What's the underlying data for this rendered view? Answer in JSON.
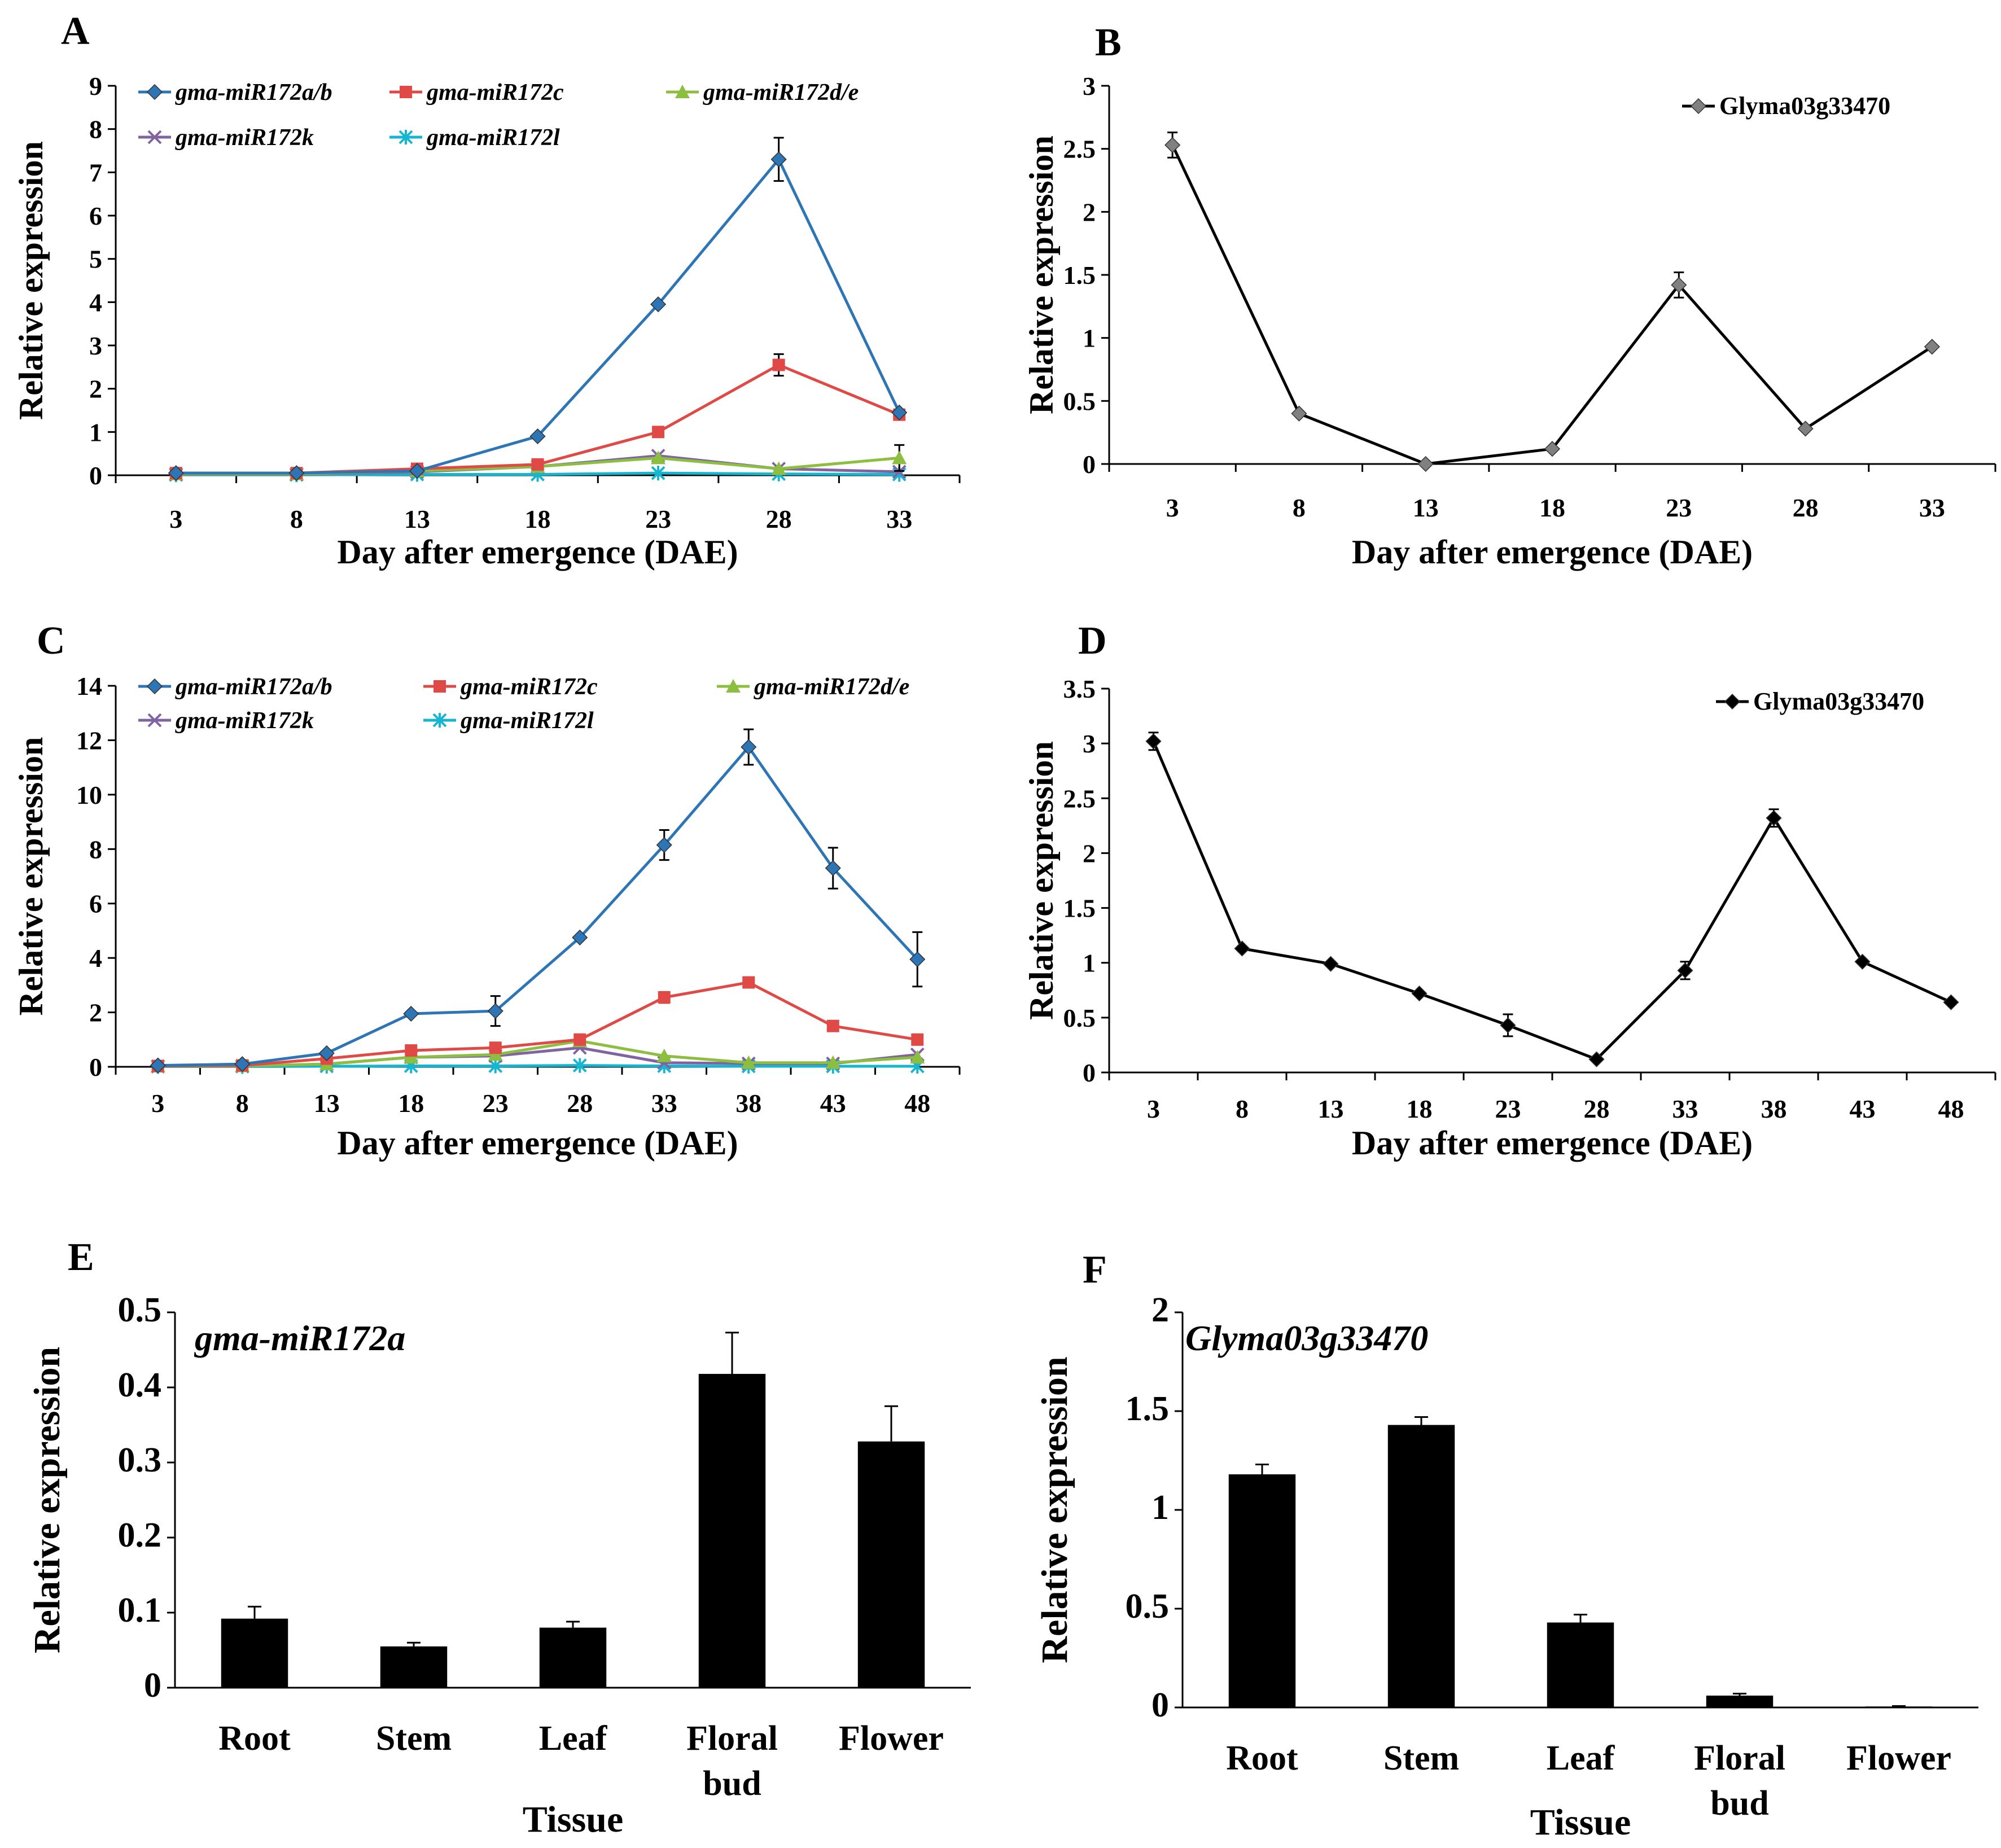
{
  "chart_data": [
    {
      "panel": "A",
      "type": "line",
      "xlabel": "Day after emergence (DAE)",
      "ylabel": "Relative expression",
      "categories": [
        "3",
        "8",
        "13",
        "18",
        "23",
        "28",
        "33"
      ],
      "ylim": [
        0,
        9
      ],
      "yticks": [
        "0",
        "1",
        "2",
        "3",
        "4",
        "5",
        "6",
        "7",
        "8",
        "9"
      ],
      "legend": "top",
      "series": [
        {
          "name": "gma-miR172a/b",
          "color": "#2e75b6",
          "marker": "diamond",
          "values": [
            0.05,
            0.05,
            0.1,
            0.9,
            3.95,
            7.3,
            1.45
          ],
          "errors": [
            0,
            0,
            0,
            0,
            0,
            0.5,
            0
          ]
        },
        {
          "name": "gma-miR172c",
          "color": "#e04a46",
          "marker": "square",
          "values": [
            0.05,
            0.05,
            0.15,
            0.25,
            1.0,
            2.55,
            1.4
          ],
          "errors": [
            0,
            0,
            0,
            0,
            0,
            0.25,
            0
          ]
        },
        {
          "name": "gma-miR172d/e",
          "color": "#8cbf3f",
          "marker": "triangle",
          "values": [
            0.03,
            0.03,
            0.1,
            0.2,
            0.4,
            0.15,
            0.4
          ],
          "errors": [
            0,
            0,
            0,
            0,
            0,
            0,
            0.3
          ]
        },
        {
          "name": "gma-miR172k",
          "color": "#8064a2",
          "marker": "x",
          "values": [
            0.02,
            0.02,
            0.08,
            0.2,
            0.45,
            0.15,
            0.08
          ],
          "errors": [
            0,
            0,
            0,
            0,
            0,
            0,
            0
          ]
        },
        {
          "name": "gma-miR172l",
          "color": "#17b6d0",
          "marker": "star",
          "values": [
            0.01,
            0.01,
            0.02,
            0.02,
            0.05,
            0.03,
            0.02
          ],
          "errors": [
            0,
            0,
            0,
            0,
            0,
            0,
            0
          ]
        }
      ]
    },
    {
      "panel": "B",
      "type": "line",
      "xlabel": "Day after emergence (DAE)",
      "ylabel": "Relative expression",
      "categories": [
        "3",
        "8",
        "13",
        "18",
        "23",
        "28",
        "33"
      ],
      "ylim": [
        0,
        3
      ],
      "yticks": [
        "0",
        "0.5",
        "1",
        "1.5",
        "2",
        "2.5",
        "3"
      ],
      "legend": "top-right",
      "series": [
        {
          "name": "Glyma03g33470",
          "color": "#000000",
          "markerColor": "#808080",
          "marker": "diamond",
          "values": [
            2.53,
            0.4,
            0.0,
            0.12,
            1.42,
            0.28,
            0.93
          ],
          "errors": [
            0.1,
            0,
            0,
            0,
            0.1,
            0,
            0
          ]
        }
      ]
    },
    {
      "panel": "C",
      "type": "line",
      "xlabel": "Day after emergence (DAE)",
      "ylabel": "Relative expression",
      "categories": [
        "3",
        "8",
        "13",
        "18",
        "23",
        "28",
        "33",
        "38",
        "43",
        "48"
      ],
      "ylim": [
        0,
        14
      ],
      "yticks": [
        "0",
        "2",
        "4",
        "6",
        "8",
        "10",
        "12",
        "14"
      ],
      "legend": "top",
      "series": [
        {
          "name": "gma-miR172a/b",
          "color": "#2e75b6",
          "marker": "diamond",
          "values": [
            0.05,
            0.1,
            0.5,
            1.95,
            2.05,
            4.75,
            8.15,
            11.75,
            7.3,
            3.95
          ],
          "errors": [
            0,
            0,
            0,
            0,
            0.55,
            0,
            0.55,
            0.65,
            0.75,
            1.0
          ]
        },
        {
          "name": "gma-miR172c",
          "color": "#e04a46",
          "marker": "square",
          "values": [
            0.03,
            0.05,
            0.3,
            0.6,
            0.7,
            1.0,
            2.55,
            3.1,
            1.5,
            1.0
          ],
          "errors": [
            0,
            0,
            0,
            0,
            0,
            0,
            0.2,
            0,
            0,
            0
          ]
        },
        {
          "name": "gma-miR172d/e",
          "color": "#8cbf3f",
          "marker": "triangle",
          "values": [
            0.02,
            0.03,
            0.1,
            0.35,
            0.45,
            0.95,
            0.4,
            0.15,
            0.15,
            0.35
          ],
          "errors": [
            0,
            0,
            0,
            0,
            0,
            0,
            0,
            0,
            0,
            0
          ]
        },
        {
          "name": "gma-miR172k",
          "color": "#8064a2",
          "marker": "x",
          "values": [
            0.02,
            0.03,
            0.1,
            0.35,
            0.4,
            0.7,
            0.15,
            0.12,
            0.12,
            0.45
          ],
          "errors": [
            0,
            0,
            0,
            0,
            0,
            0,
            0,
            0,
            0,
            0
          ]
        },
        {
          "name": "gma-miR172l",
          "color": "#17b6d0",
          "marker": "star",
          "values": [
            0.01,
            0.01,
            0.02,
            0.03,
            0.03,
            0.05,
            0.03,
            0.02,
            0.02,
            0.02
          ],
          "errors": [
            0,
            0,
            0,
            0,
            0,
            0,
            0,
            0,
            0,
            0
          ]
        }
      ]
    },
    {
      "panel": "D",
      "type": "line",
      "xlabel": "Day after emergence (DAE)",
      "ylabel": "Relative expression",
      "categories": [
        "3",
        "8",
        "13",
        "18",
        "23",
        "28",
        "33",
        "38",
        "43",
        "48"
      ],
      "ylim": [
        0,
        3.5
      ],
      "yticks": [
        "0",
        "0.5",
        "1",
        "1.5",
        "2",
        "2.5",
        "3",
        "3.5"
      ],
      "legend": "top-right",
      "series": [
        {
          "name": "Glyma03g33470",
          "color": "#000000",
          "markerColor": "#000000",
          "marker": "diamond",
          "values": [
            3.02,
            1.13,
            0.99,
            0.72,
            0.43,
            0.12,
            0.93,
            2.32,
            1.01,
            0.64
          ],
          "errors": [
            0.08,
            0,
            0,
            0,
            0.1,
            0,
            0.08,
            0.08,
            0,
            0
          ]
        }
      ]
    },
    {
      "panel": "E",
      "type": "bar",
      "xlabel": "Tissue",
      "ylabel": "Relative expression",
      "gene": "gma-miR172a",
      "categories": [
        "Root",
        "Stem",
        "Leaf",
        "Floral bud",
        "Flower"
      ],
      "ylim": [
        0,
        0.5
      ],
      "yticks": [
        "0",
        "0.1",
        "0.2",
        "0.3",
        "0.4",
        "0.5"
      ],
      "values": [
        0.092,
        0.055,
        0.08,
        0.418,
        0.328
      ],
      "errors": [
        0.016,
        0.005,
        0.008,
        0.055,
        0.047
      ]
    },
    {
      "panel": "F",
      "type": "bar",
      "xlabel": "Tissue",
      "ylabel": "Relative expression",
      "gene": "Glyma03g33470",
      "categories": [
        "Root",
        "Stem",
        "Leaf",
        "Floral bud",
        "Flower"
      ],
      "ylim": [
        0,
        2
      ],
      "yticks": [
        "0",
        "0.5",
        "1",
        "1.5",
        "2"
      ],
      "values": [
        1.18,
        1.43,
        0.43,
        0.06,
        0.005
      ],
      "errors": [
        0.05,
        0.04,
        0.04,
        0.01,
        0.002
      ]
    }
  ]
}
